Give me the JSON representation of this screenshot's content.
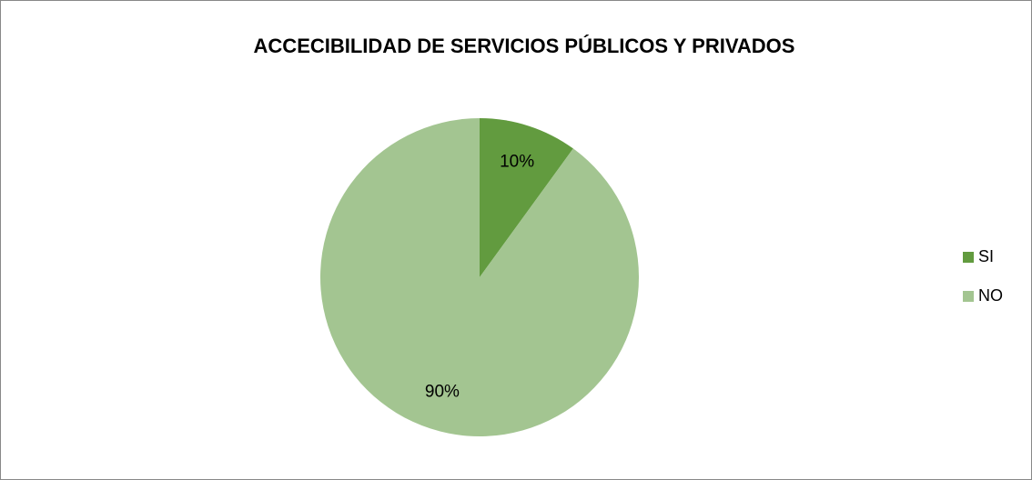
{
  "chart_data": {
    "type": "pie",
    "title": "ACCECIBILIDAD DE SERVICIOS PÚBLICOS Y PRIVADOS",
    "categories": [
      "SI",
      "NO"
    ],
    "values": [
      10,
      90
    ],
    "value_labels": [
      "10%",
      "90%"
    ],
    "colors": [
      "#629b3f",
      "#a3c591"
    ],
    "legend": "right"
  }
}
